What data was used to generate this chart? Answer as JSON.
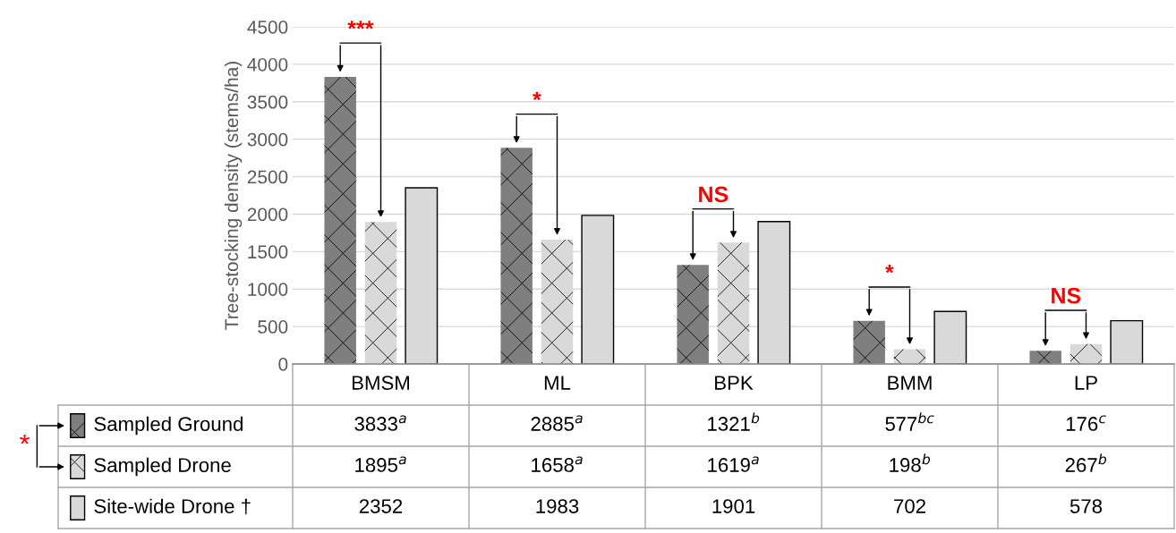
{
  "chart_data": {
    "type": "bar",
    "ylabel": "Tree-stocking density (stems/ha)",
    "categories": [
      "BMSM",
      "ML",
      "BPK",
      "BMM",
      "LP"
    ],
    "series": [
      {
        "name": "Sampled Ground",
        "color": "#7f7f7f",
        "values": [
          3833,
          2885,
          1321,
          577,
          176
        ],
        "value_labels": [
          "3833$^{a}$",
          "2885$^{a}$",
          "1321$^{b}$",
          "577$^{bc}$",
          "176$^{c}$"
        ]
      },
      {
        "name": "Sampled Drone",
        "color": "#d9d9d9",
        "values": [
          1895,
          1658,
          1619,
          198,
          267
        ],
        "value_labels": [
          "1895$^{a}$",
          "1658$^{a}$",
          "1619$^{a}$",
          "198$^{b}$",
          "267$^{b}$"
        ]
      },
      {
        "name": "Site-wide Drone †",
        "color": "#d9d9d9",
        "values": [
          2352,
          1983,
          1901,
          702,
          578
        ],
        "value_labels": [
          "2352",
          "1983",
          "1901",
          "702",
          "578"
        ]
      }
    ],
    "ylim": [
      0,
      4500
    ],
    "yticks": [
      0,
      500,
      1000,
      1500,
      2000,
      2500,
      3000,
      3500,
      4000,
      4500
    ],
    "grid": "y",
    "legend": "bottom left",
    "annotations": [
      "***",
      "*",
      "NS",
      "*",
      "NS",
      "*"
    ]
  }
}
